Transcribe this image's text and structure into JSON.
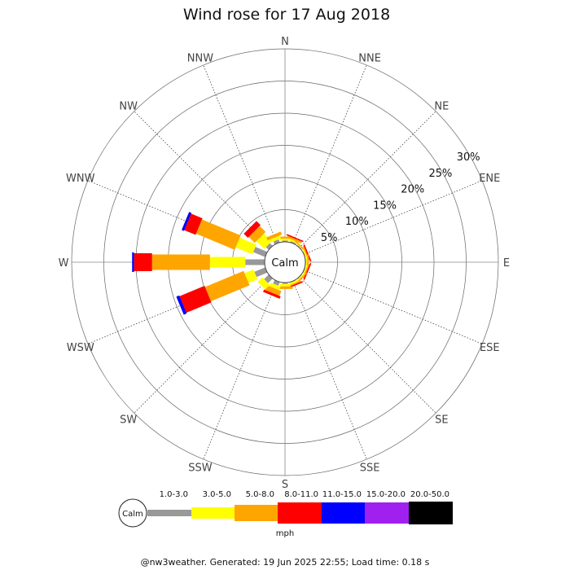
{
  "chart_data": {
    "type": "wind-rose",
    "title": "Wind rose for 17 Aug 2018",
    "directions": [
      "N",
      "NNE",
      "NE",
      "ENE",
      "E",
      "ESE",
      "SE",
      "SSE",
      "S",
      "SSW",
      "SW",
      "WSW",
      "W",
      "WNW",
      "NW",
      "NNW"
    ],
    "ring_labels": [
      "5%",
      "10%",
      "15%",
      "20%",
      "25%",
      "30%"
    ],
    "rlim": [
      0,
      30
    ],
    "center_label": "Calm",
    "unit": "mph",
    "speed_bins": [
      {
        "label": "1.0-3.0",
        "color": "#999999"
      },
      {
        "label": "3.0-5.0",
        "color": "#ffff00"
      },
      {
        "label": "5.0-8.0",
        "color": "#ffa500"
      },
      {
        "label": "8.0-11.0",
        "color": "#ff0000"
      },
      {
        "label": "11.0-15.0",
        "color": "#0000ff"
      },
      {
        "label": "15.0-20.0",
        "color": "#a020f0"
      },
      {
        "label": "20.0-50.0",
        "color": "#000000"
      }
    ],
    "series": [
      {
        "direction": "N",
        "values": [
          0.2,
          0.3,
          0.3,
          0.0,
          0,
          0,
          0
        ]
      },
      {
        "direction": "NNE",
        "values": [
          0.2,
          0.3,
          0.3,
          0.2,
          0,
          0,
          0
        ]
      },
      {
        "direction": "NE",
        "values": [
          0.1,
          0.1,
          0.2,
          0.0,
          0,
          0,
          0
        ]
      },
      {
        "direction": "ENE",
        "values": [
          0.1,
          0.2,
          0.2,
          0.2,
          0,
          0,
          0
        ]
      },
      {
        "direction": "E",
        "values": [
          0.1,
          0.2,
          0.2,
          0.0,
          0,
          0,
          0
        ]
      },
      {
        "direction": "ESE",
        "values": [
          0.1,
          0.2,
          0.2,
          0.2,
          0,
          0,
          0
        ]
      },
      {
        "direction": "SE",
        "values": [
          0.1,
          0.2,
          0.2,
          0.0,
          0,
          0,
          0
        ]
      },
      {
        "direction": "SSE",
        "values": [
          0.1,
          0.3,
          0.2,
          0.2,
          0,
          0,
          0
        ]
      },
      {
        "direction": "S",
        "values": [
          0.2,
          0.4,
          0.4,
          0.0,
          0,
          0,
          0
        ]
      },
      {
        "direction": "SSW",
        "values": [
          0.6,
          0.6,
          0.8,
          0.4,
          0,
          0,
          0
        ]
      },
      {
        "direction": "SW",
        "values": [
          1.0,
          1.0,
          0.0,
          0.0,
          0,
          0,
          0
        ]
      },
      {
        "direction": "WSW",
        "values": [
          1.8,
          1.5,
          6.5,
          4.2,
          0.5,
          0,
          0
        ]
      },
      {
        "direction": "W",
        "values": [
          3.0,
          5.5,
          9.0,
          2.8,
          0.3,
          0,
          0
        ]
      },
      {
        "direction": "WNW",
        "values": [
          2.0,
          2.8,
          6.5,
          1.9,
          0.4,
          0,
          0
        ]
      },
      {
        "direction": "NW",
        "values": [
          0.6,
          1.7,
          1.3,
          0.9,
          0,
          0,
          0
        ]
      },
      {
        "direction": "NNW",
        "values": [
          0.5,
          0.5,
          0.5,
          0.0,
          0,
          0,
          0
        ]
      }
    ],
    "footer": "@nw3weather. Generated: 19 Jun 2025 22:55; Load time: 0.18 s"
  }
}
